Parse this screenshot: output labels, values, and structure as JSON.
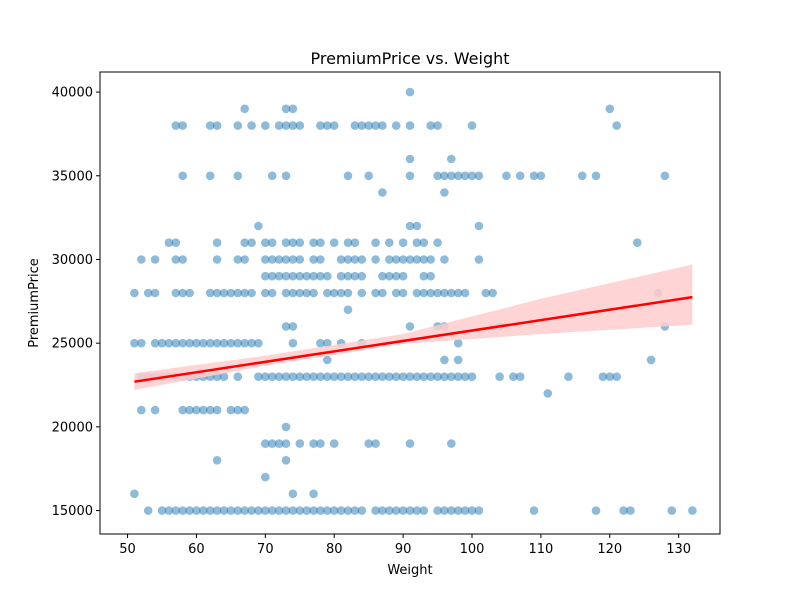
{
  "chart_data": {
    "type": "scatter",
    "title": "PremiumPrice vs. Weight",
    "xlabel": "Weight",
    "ylabel": "PremiumPrice",
    "xlim": [
      46,
      136
    ],
    "ylim": [
      13600,
      41200
    ],
    "xticks": [
      50,
      60,
      70,
      80,
      90,
      100,
      110,
      120,
      130
    ],
    "yticks": [
      15000,
      20000,
      25000,
      30000,
      35000,
      40000
    ],
    "grid": false,
    "point_color": "#1f77b4",
    "line_color": "#ff0000",
    "band_color": "#ffcccc",
    "regression": {
      "x0": 51,
      "y0": 22700,
      "x1": 132,
      "y1": 27750,
      "ci_lower": [
        [
          51,
          22200
        ],
        [
          70,
          23650
        ],
        [
          90,
          24950
        ],
        [
          110,
          25550
        ],
        [
          132,
          26100
        ]
      ],
      "ci_upper": [
        [
          51,
          23200
        ],
        [
          70,
          24250
        ],
        [
          90,
          25550
        ],
        [
          110,
          27650
        ],
        [
          132,
          29700
        ]
      ]
    },
    "series": [
      {
        "y": 40000,
        "x": [
          91
        ]
      },
      {
        "y": 39000,
        "x": [
          67,
          73,
          74,
          120
        ]
      },
      {
        "y": 38000,
        "x": [
          57,
          58,
          62,
          63,
          66,
          68,
          70,
          72,
          73,
          74,
          75,
          78,
          79,
          80,
          83,
          84,
          85,
          86,
          87,
          89,
          91,
          94,
          95,
          100,
          121
        ]
      },
      {
        "y": 36000,
        "x": [
          91,
          97
        ]
      },
      {
        "y": 35000,
        "x": [
          58,
          62,
          66,
          71,
          73,
          82,
          85,
          91,
          95,
          96,
          97,
          98,
          99,
          100,
          101,
          105,
          107,
          109,
          110,
          116,
          118,
          128
        ]
      },
      {
        "y": 34000,
        "x": [
          87,
          96
        ]
      },
      {
        "y": 32000,
        "x": [
          69,
          91,
          92,
          101
        ]
      },
      {
        "y": 31000,
        "x": [
          56,
          57,
          63,
          67,
          68,
          70,
          71,
          73,
          74,
          75,
          77,
          78,
          80,
          82,
          83,
          86,
          88,
          90,
          92,
          93,
          95,
          124
        ]
      },
      {
        "y": 30000,
        "x": [
          52,
          54,
          57,
          58,
          63,
          66,
          67,
          70,
          71,
          72,
          73,
          74,
          75,
          77,
          78,
          81,
          82,
          83,
          84,
          86,
          88,
          89,
          90,
          91,
          92,
          93,
          94,
          96,
          101
        ]
      },
      {
        "y": 29000,
        "x": [
          70,
          71,
          72,
          73,
          74,
          75,
          76,
          77,
          78,
          79,
          81,
          82,
          83,
          84,
          87,
          88,
          89,
          90,
          93,
          94
        ]
      },
      {
        "y": 28000,
        "x": [
          51,
          53,
          54,
          57,
          58,
          59,
          62,
          63,
          64,
          65,
          66,
          67,
          68,
          70,
          71,
          73,
          74,
          75,
          76,
          77,
          79,
          80,
          81,
          82,
          84,
          86,
          87,
          89,
          90,
          92,
          93,
          94,
          95,
          96,
          97,
          98,
          99,
          102,
          103,
          127
        ]
      },
      {
        "y": 27000,
        "x": [
          82
        ]
      },
      {
        "y": 26000,
        "x": [
          73,
          74,
          91,
          95,
          96,
          104,
          128
        ]
      },
      {
        "y": 25000,
        "x": [
          51,
          52,
          54,
          55,
          56,
          57,
          58,
          59,
          60,
          61,
          62,
          63,
          64,
          65,
          66,
          67,
          68,
          69,
          74,
          78,
          79,
          81,
          84,
          98
        ]
      },
      {
        "y": 24000,
        "x": [
          79,
          96,
          98,
          126
        ]
      },
      {
        "y": 23000,
        "x": [
          52,
          53,
          54,
          55,
          56,
          57,
          58,
          59,
          60,
          61,
          62,
          63,
          64,
          66,
          69,
          70,
          71,
          72,
          73,
          74,
          75,
          76,
          77,
          78,
          79,
          80,
          81,
          82,
          83,
          84,
          85,
          86,
          87,
          88,
          89,
          90,
          91,
          92,
          93,
          94,
          95,
          96,
          97,
          98,
          99,
          100,
          104,
          106,
          107,
          114,
          119,
          120,
          121
        ]
      },
      {
        "y": 22000,
        "x": [
          111
        ]
      },
      {
        "y": 21000,
        "x": [
          52,
          54,
          58,
          59,
          60,
          61,
          62,
          63,
          65,
          66,
          67
        ]
      },
      {
        "y": 20000,
        "x": [
          73
        ]
      },
      {
        "y": 19000,
        "x": [
          70,
          71,
          72,
          73,
          75,
          77,
          78,
          80,
          85,
          86,
          91,
          97
        ]
      },
      {
        "y": 18000,
        "x": [
          63,
          73
        ]
      },
      {
        "y": 17000,
        "x": [
          70
        ]
      },
      {
        "y": 16000,
        "x": [
          51,
          74,
          77
        ]
      },
      {
        "y": 15000,
        "x": [
          53,
          55,
          56,
          57,
          58,
          59,
          60,
          61,
          62,
          63,
          64,
          65,
          66,
          67,
          68,
          69,
          70,
          71,
          72,
          73,
          74,
          75,
          76,
          77,
          78,
          79,
          80,
          81,
          82,
          83,
          84,
          86,
          87,
          88,
          89,
          90,
          91,
          92,
          93,
          95,
          96,
          97,
          98,
          99,
          100,
          101,
          109,
          118,
          122,
          123,
          129,
          132
        ]
      }
    ]
  }
}
